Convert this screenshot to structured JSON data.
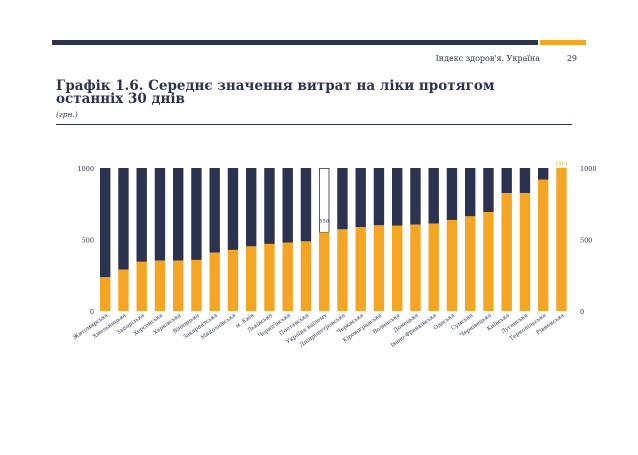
{
  "header": {
    "report_title": "Індекс здоров'я. Україна",
    "page_number": "29"
  },
  "colors": {
    "dark": "#2b3350",
    "accent": "#f5a524",
    "highlight": "#f5a524",
    "label_text": "#2b3350"
  },
  "chart_data": {
    "type": "bar",
    "title": "Графік 1.6. Середнє значення витрат на ліки протягом останніх 30 днів",
    "subtitle": "(грн.)",
    "xlabel": "",
    "ylabel": "",
    "ylim": [
      0,
      1000
    ],
    "yticks": [
      "0",
      "500",
      "1000"
    ],
    "grid": false,
    "categories": [
      "Житомирська",
      "Хмельницька",
      "Запорізька",
      "Херсонська",
      "Харківська",
      "Вінницька",
      "Закарпатська",
      "Миколаївська",
      "м. Київ",
      "Львівська",
      "Чернігівська",
      "Полтавська",
      "Україна вцілому",
      "Дніпропетровська",
      "Черкаська",
      "Кіровоградська",
      "Волинська",
      "Донецька",
      "Івано-Франківська",
      "Одеська",
      "Сумська",
      "Чернівецька",
      "Київська",
      "Луганська",
      "Тернопільська",
      "Рівненська"
    ],
    "values": [
      236,
      289,
      344,
      352,
      353,
      357,
      408,
      427,
      452,
      469,
      479,
      487,
      550,
      571,
      586,
      599,
      596,
      605,
      612,
      636,
      662,
      692,
      824,
      825,
      918,
      1001
    ],
    "special": {
      "Україна вцілому": "outline",
      "Рівненська": "highlight"
    }
  }
}
